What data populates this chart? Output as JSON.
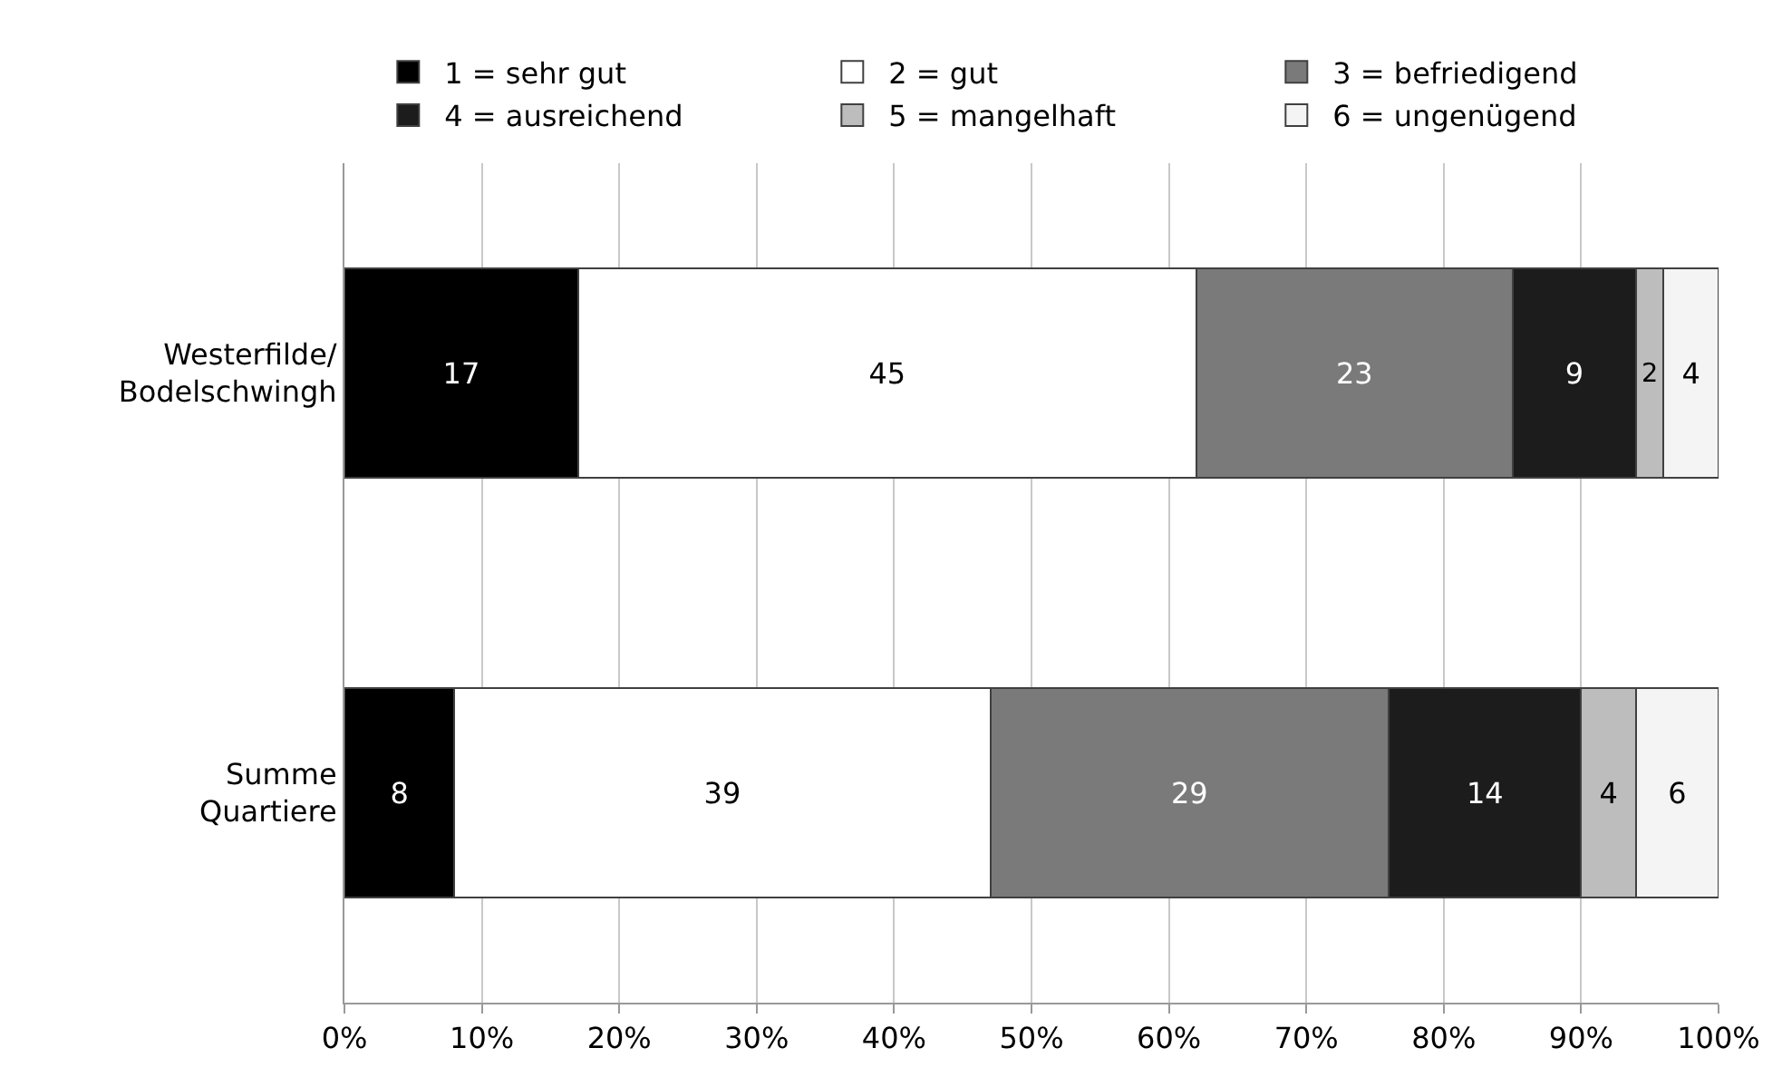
{
  "chart_data": {
    "type": "bar",
    "orientation": "horizontal",
    "stacked": true,
    "categories": [
      "Westerfilde/\nBodelschwingh",
      "Summe\nQuartiere"
    ],
    "series": [
      {
        "name": "1 = sehr gut",
        "color": "#000000",
        "values": [
          17,
          8
        ]
      },
      {
        "name": "2 = gut",
        "color": "#ffffff",
        "values": [
          45,
          39
        ]
      },
      {
        "name": "3 = befriedigend",
        "color": "#7a7a7a",
        "values": [
          23,
          29
        ]
      },
      {
        "name": "4 = ausreichend",
        "color": "#1c1c1c",
        "values": [
          9,
          14
        ]
      },
      {
        "name": "5 = mangelhaft",
        "color": "#bdbdbd",
        "values": [
          2,
          4
        ]
      },
      {
        "name": "6 = ungenügend",
        "color": "#f4f4f4",
        "values": [
          4,
          6
        ]
      }
    ],
    "xlim": [
      0,
      100
    ],
    "xticks": [
      {
        "value": 0,
        "label": "0%"
      },
      {
        "value": 10,
        "label": "10%"
      },
      {
        "value": 20,
        "label": "20%"
      },
      {
        "value": 30,
        "label": "30%"
      },
      {
        "value": 40,
        "label": "40%"
      },
      {
        "value": 50,
        "label": "50%"
      },
      {
        "value": 60,
        "label": "60%"
      },
      {
        "value": 70,
        "label": "70%"
      },
      {
        "value": 80,
        "label": "80%"
      },
      {
        "value": 90,
        "label": "90%"
      },
      {
        "value": 100,
        "label": "100%"
      }
    ],
    "grid": "x",
    "legend": "top",
    "data_labels": true
  }
}
